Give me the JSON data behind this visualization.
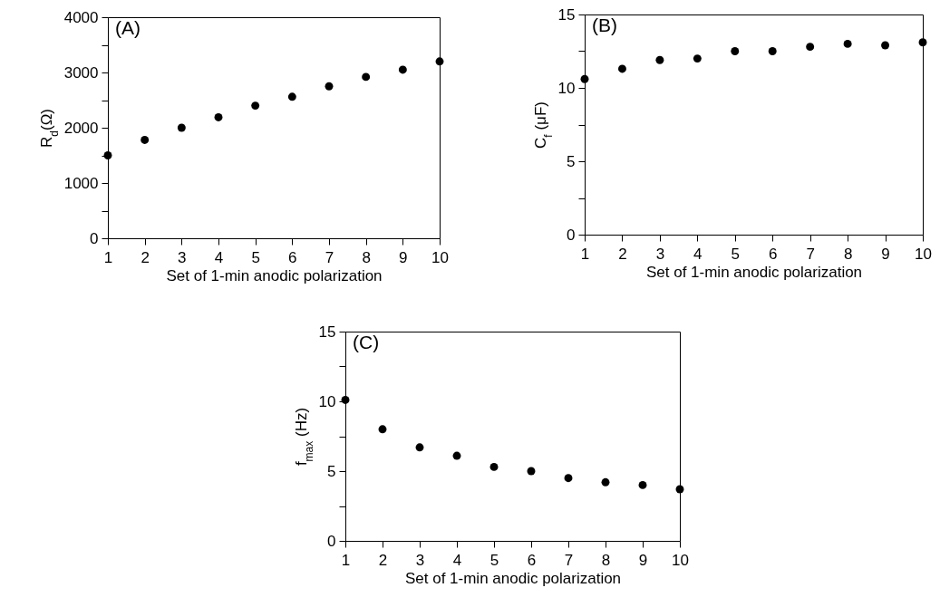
{
  "chart_data": [
    {
      "type": "scatter",
      "xlabel": "Set of 1-min anodic polarization",
      "ylabel": "R$_{d}$(Ω)",
      "annotations": [
        "(A)"
      ],
      "marker": "circle",
      "color": "#000000",
      "x": [
        1,
        2,
        3,
        4,
        5,
        6,
        7,
        8,
        9,
        10
      ],
      "values": [
        1500,
        1780,
        2000,
        2190,
        2400,
        2560,
        2750,
        2920,
        3050,
        3200
      ],
      "xlim": [
        1,
        10
      ],
      "xticks": [
        1,
        2,
        3,
        4,
        5,
        6,
        7,
        8,
        9,
        10
      ],
      "ylim": [
        0,
        4000
      ],
      "yticks": [
        0,
        {
          "value": 500,
          "label": null
        },
        1000,
        {
          "value": 1500,
          "label": null
        },
        2000,
        {
          "value": 2500,
          "label": null
        },
        3000,
        {
          "value": 3500,
          "label": null
        },
        4000
      ]
    },
    {
      "type": "scatter",
      "xlabel": "Set of 1-min anodic polarization",
      "ylabel": "C$_{f}$ (μF)",
      "annotations": [
        "(B)"
      ],
      "marker": "circle",
      "color": "#000000",
      "x": [
        1,
        2,
        3,
        4,
        5,
        6,
        7,
        8,
        9,
        10
      ],
      "values": [
        10.6,
        11.3,
        11.9,
        12.0,
        12.5,
        12.5,
        12.8,
        13.0,
        12.9,
        13.1
      ],
      "xlim": [
        1,
        10
      ],
      "xticks": [
        1,
        2,
        3,
        4,
        5,
        6,
        7,
        8,
        9,
        10
      ],
      "ylim": [
        0,
        15
      ],
      "yticks": [
        0,
        {
          "value": 2.5,
          "label": null
        },
        5,
        {
          "value": 7.5,
          "label": null
        },
        10,
        {
          "value": 12.5,
          "label": null
        },
        15
      ]
    },
    {
      "type": "scatter",
      "xlabel": "Set of 1-min anodic polarization",
      "ylabel": "f$_{max}$ (Hz)",
      "annotations": [
        "(C)"
      ],
      "marker": "circle",
      "color": "#000000",
      "x": [
        1,
        2,
        3,
        4,
        5,
        6,
        7,
        8,
        9,
        10
      ],
      "values": [
        10.1,
        8.0,
        6.7,
        6.1,
        5.3,
        5.0,
        4.5,
        4.2,
        4.0,
        3.7
      ],
      "xlim": [
        1,
        10
      ],
      "xticks": [
        1,
        2,
        3,
        4,
        5,
        6,
        7,
        8,
        9,
        10
      ],
      "ylim": [
        0,
        15
      ],
      "yticks": [
        0,
        {
          "value": 2.5,
          "label": null
        },
        5,
        {
          "value": 7.5,
          "label": null
        },
        10,
        {
          "value": 12.5,
          "label": null
        },
        15
      ]
    }
  ]
}
